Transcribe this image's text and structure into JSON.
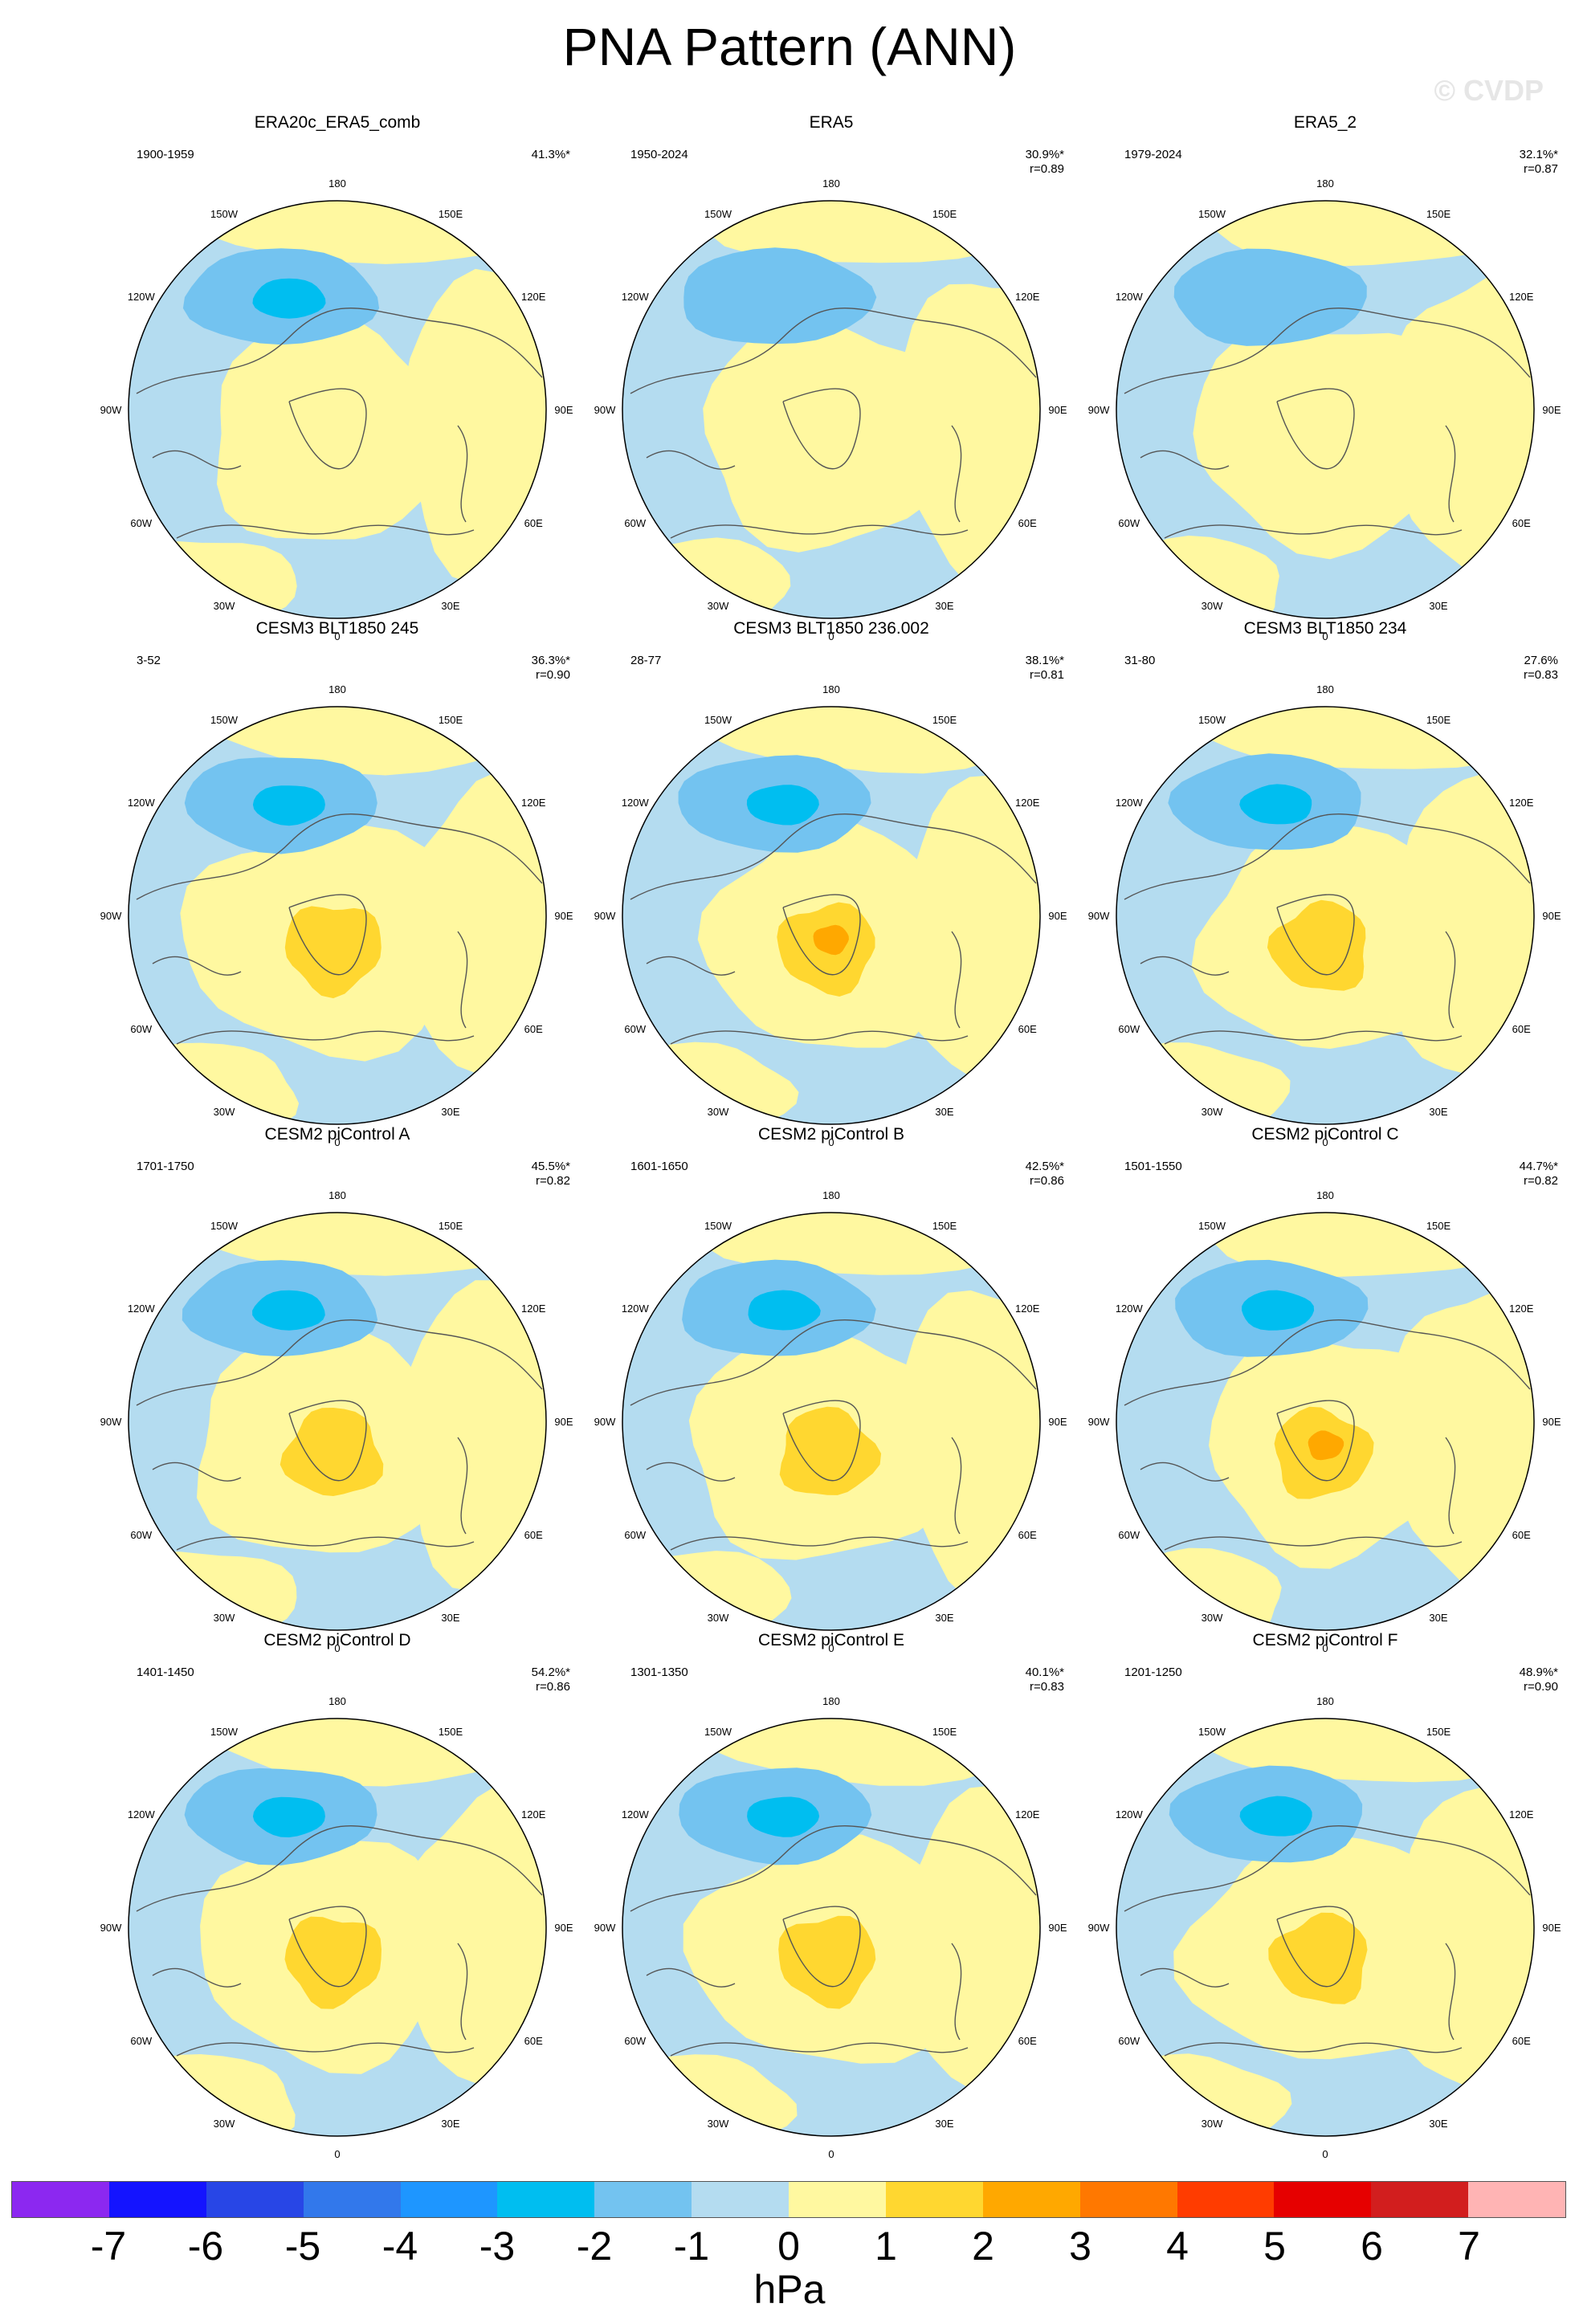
{
  "title": "PNA Pattern (ANN)",
  "watermark": "© CVDP",
  "lon_labels": [
    "180",
    "150E",
    "120E",
    "90E",
    "60E",
    "30E",
    "0",
    "30W",
    "60W",
    "90W",
    "120W",
    "150W"
  ],
  "colors": {
    "light_blue": "#b4dcf0",
    "mid_blue": "#73c3f0",
    "bright_blue": "#00bef0",
    "light_yellow": "#fff8a0",
    "yellow": "#ffd730",
    "orange": "#ffa800"
  },
  "panels": [
    {
      "title": "ERA20c_ERA5_comb",
      "period": "1900-1959",
      "pct": "41.3%*",
      "r": ""
    },
    {
      "title": "ERA5",
      "period": "1950-2024",
      "pct": "30.9%*",
      "r": "r=0.89"
    },
    {
      "title": "ERA5_2",
      "period": "1979-2024",
      "pct": "32.1%*",
      "r": "r=0.87"
    },
    {
      "title": "CESM3 BLT1850 245",
      "period": "3-52",
      "pct": "36.3%*",
      "r": "r=0.90"
    },
    {
      "title": "CESM3 BLT1850 236.002",
      "period": "28-77",
      "pct": "38.1%*",
      "r": "r=0.81"
    },
    {
      "title": "CESM3 BLT1850 234",
      "period": "31-80",
      "pct": "27.6%",
      "r": "r=0.83"
    },
    {
      "title": "CESM2 piControl A",
      "period": "1701-1750",
      "pct": "45.5%*",
      "r": "r=0.82"
    },
    {
      "title": "CESM2 piControl B",
      "period": "1601-1650",
      "pct": "42.5%*",
      "r": "r=0.86"
    },
    {
      "title": "CESM2 piControl C",
      "period": "1501-1550",
      "pct": "44.7%*",
      "r": "r=0.82"
    },
    {
      "title": "CESM2 piControl D",
      "period": "1401-1450",
      "pct": "54.2%*",
      "r": "r=0.86"
    },
    {
      "title": "CESM2 piControl E",
      "period": "1301-1350",
      "pct": "40.1%*",
      "r": "r=0.83"
    },
    {
      "title": "CESM2 piControl F",
      "period": "1201-1250",
      "pct": "48.9%*",
      "r": "r=0.90"
    }
  ],
  "colorbar": {
    "units": "hPa",
    "ticks": [
      "-7",
      "-6",
      "-5",
      "-4",
      "-3",
      "-2",
      "-1",
      "0",
      "1",
      "2",
      "3",
      "4",
      "5",
      "6",
      "7"
    ],
    "colors": [
      "#8c28f0",
      "#1414ff",
      "#2846e6",
      "#3278eb",
      "#1e96ff",
      "#00bef0",
      "#73c3f0",
      "#b4dcf0",
      "#fff8a0",
      "#ffd730",
      "#ffa800",
      "#ff7800",
      "#ff3c00",
      "#e60000",
      "#d21e1e",
      "#ffb4b4"
    ]
  }
}
